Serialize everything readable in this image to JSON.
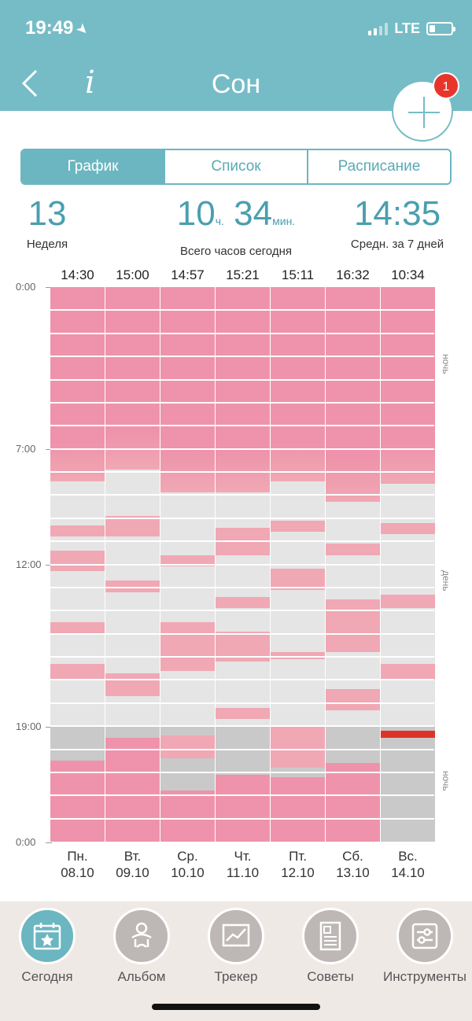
{
  "status": {
    "time": "19:49",
    "network": "LTE"
  },
  "header": {
    "title": "Сон",
    "info_label": "i",
    "badge_count": "1"
  },
  "tabs": [
    {
      "label": "График",
      "active": true
    },
    {
      "label": "Список",
      "active": false
    },
    {
      "label": "Расписание",
      "active": false
    }
  ],
  "stats": {
    "week_value": "13",
    "week_label": "Неделя",
    "hours_value": "10",
    "hours_unit": "ч.",
    "minutes_value": "34",
    "minutes_unit": "мин.",
    "total_label": "Всего часов сегодня",
    "avg_value": "14:35",
    "avg_label": "Средн. за 7 дней"
  },
  "chart": {
    "y_labels": [
      "0:00",
      "7:00",
      "12:00",
      "19:00",
      "0:00"
    ],
    "side_labels": [
      "ночь",
      "день",
      "ночь"
    ],
    "colors": {
      "night_sleep": "#ee93ab",
      "day_sleep": "#f0a8b4",
      "awake": "#e5e5e5",
      "evening": "#c9c9c9",
      "current": "#e03328"
    },
    "days": [
      {
        "total": "14:30",
        "weekday": "Пн.",
        "date": "08.10"
      },
      {
        "total": "15:00",
        "weekday": "Вт.",
        "date": "09.10"
      },
      {
        "total": "14:57",
        "weekday": "Ср.",
        "date": "10.10"
      },
      {
        "total": "15:21",
        "weekday": "Чт.",
        "date": "11.10"
      },
      {
        "total": "15:11",
        "weekday": "Пт.",
        "date": "12.10"
      },
      {
        "total": "16:32",
        "weekday": "Сб.",
        "date": "13.10"
      },
      {
        "total": "10:34",
        "weekday": "Вс.",
        "date": "14.10"
      }
    ]
  },
  "chart_data": {
    "type": "bar",
    "categories": [
      "Пн. 08.10",
      "Вт. 09.10",
      "Ср. 10.10",
      "Чт. 11.10",
      "Пт. 12.10",
      "Сб. 13.10",
      "Вс. 14.10"
    ],
    "y_range_hours": [
      0,
      24
    ],
    "series": [
      {
        "values": [
          [
            [
              0,
              8.4
            ],
            [
              10.3,
              10.8
            ],
            [
              11.4,
              12.3
            ],
            [
              14.5,
              15.0
            ],
            [
              16.3,
              17.0
            ],
            [
              20.5,
              24
            ]
          ],
          [
            [
              0,
              7.9
            ],
            [
              9.9,
              10.8
            ],
            [
              12.7,
              13.2
            ],
            [
              16.7,
              17.7
            ],
            [
              19.5,
              24
            ]
          ],
          [
            [
              0,
              8.9
            ],
            [
              11.6,
              12.1
            ],
            [
              14.5,
              16.6
            ],
            [
              19.4,
              20.4
            ],
            [
              21.8,
              24
            ]
          ],
          [
            [
              0,
              8.9
            ],
            [
              10.4,
              11.6
            ],
            [
              13.4,
              13.9
            ],
            [
              14.9,
              16.2
            ],
            [
              18.2,
              18.7
            ],
            [
              21.1,
              24
            ]
          ],
          [
            [
              0,
              8.4
            ],
            [
              10.1,
              10.6
            ],
            [
              12.2,
              13.1
            ],
            [
              15.8,
              16.1
            ],
            [
              19.0,
              20.8
            ],
            [
              21.2,
              24
            ]
          ],
          [
            [
              0,
              9.3
            ],
            [
              11.1,
              11.6
            ],
            [
              13.5,
              15.8
            ],
            [
              17.4,
              18.3
            ],
            [
              20.6,
              24
            ]
          ],
          [
            [
              0,
              8.5
            ],
            [
              10.2,
              10.7
            ],
            [
              13.3,
              13.9
            ],
            [
              16.3,
              17.0
            ],
            [
              19.2,
              19.5
            ]
          ]
        ]
      }
    ]
  },
  "nav": [
    {
      "label": "Сегодня",
      "icon": "calendar-star-icon",
      "active": true
    },
    {
      "label": "Альбом",
      "icon": "baby-icon",
      "active": false
    },
    {
      "label": "Трекер",
      "icon": "chart-line-icon",
      "active": false
    },
    {
      "label": "Советы",
      "icon": "article-icon",
      "active": false
    },
    {
      "label": "Инструменты",
      "icon": "sliders-icon",
      "active": false
    }
  ]
}
